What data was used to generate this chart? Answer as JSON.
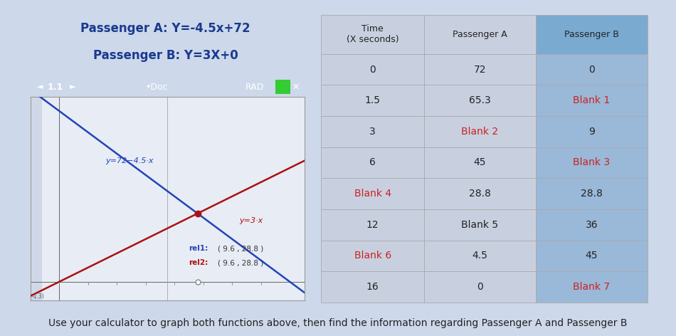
{
  "title_a": "Passenger A: Y=-4.5x+72",
  "title_b": "Passenger B: Y=3X+0",
  "title_color": "#1a3a8f",
  "title_fontsize": 12,
  "bottom_text": "Use your calculator to graph both functions above, then find the information regarding Passenger A and Passenger B",
  "bottom_text_color": "#222222",
  "bottom_fontsize": 10,
  "bg_color": "#cdd8ea",
  "graph": {
    "toolbar_text": "1.1",
    "toolbar_doc": "•Doc",
    "toolbar_rad": "RAD",
    "label_a": "y=72−4.5·x",
    "label_b": "y=3·x",
    "rel1": "rel1:",
    "rel1_coords": "( 9.6 , 28.8 )",
    "rel2": "rel2:",
    "rel2_coords": "( 9.6 , 28.8 )",
    "line_a_color": "#2244bb",
    "line_b_color": "#aa1111",
    "intersection_color": "#aa1111",
    "graph_bg": "#e8ecf4",
    "toolbar_bg": "#2a2a2a",
    "left_panel_bg": "#d0d8e8",
    "x_min": -2,
    "x_max": 17,
    "y_min": -8,
    "y_max": 78
  },
  "table": {
    "header_row": [
      "Time\n(X seconds)",
      "Passenger A",
      "Passenger B"
    ],
    "col_time_bg": "#c8d0e0",
    "col_a_bg": "#c8d0e0",
    "col_b_bg": "#9ab8d8",
    "col_b_header_bg": "#7aaad0",
    "row_bg_light": "#dde5ef",
    "row_bg_white": "#e8eef8",
    "rows": [
      {
        "time": "0",
        "a": "72",
        "b": "0",
        "a_red": false,
        "b_red": false,
        "t_red": false
      },
      {
        "time": "1.5",
        "a": "65.3",
        "b": "Blank 1",
        "a_red": false,
        "b_red": true,
        "t_red": false
      },
      {
        "time": "3",
        "a": "Blank 2",
        "b": "9",
        "a_red": true,
        "b_red": false,
        "t_red": false
      },
      {
        "time": "6",
        "a": "45",
        "b": "Blank 3",
        "a_red": false,
        "b_red": true,
        "t_red": false
      },
      {
        "time": "Blank 4",
        "a": "28.8",
        "b": "28.8",
        "a_red": false,
        "b_red": false,
        "t_red": true
      },
      {
        "time": "12",
        "a": "Blank 5",
        "b": "36",
        "a_red": false,
        "b_red": false,
        "t_red": false
      },
      {
        "time": "Blank 6",
        "a": "4.5",
        "b": "45",
        "a_red": false,
        "b_red": false,
        "t_red": true
      },
      {
        "time": "16",
        "a": "0",
        "b": "Blank 7",
        "a_red": false,
        "b_red": true,
        "t_red": false
      }
    ],
    "text_normal": "#222222",
    "text_red": "#cc2222",
    "fontsize": 10
  }
}
